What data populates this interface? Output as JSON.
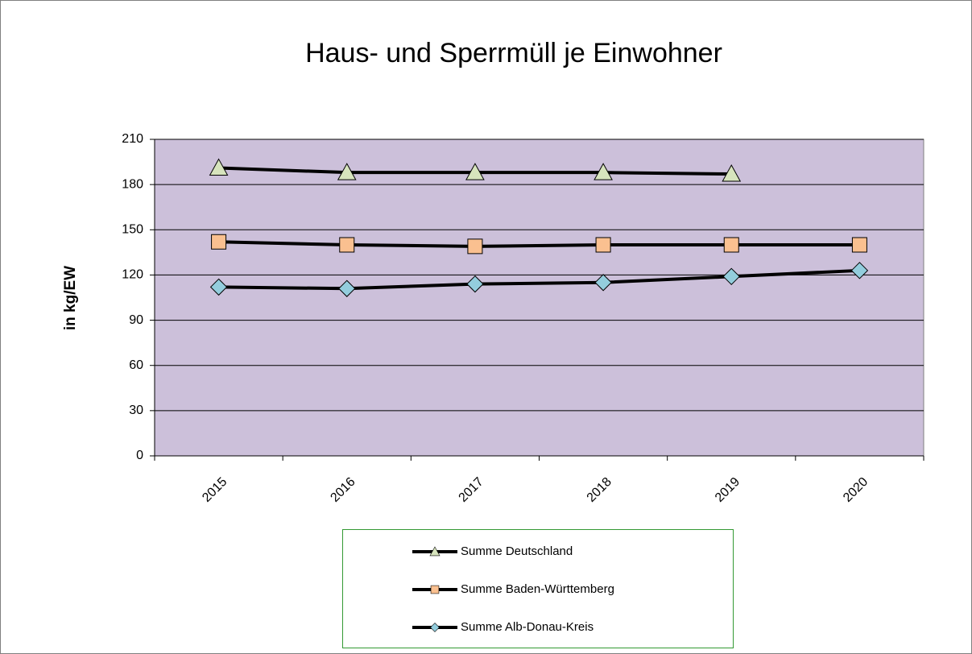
{
  "chart_data": {
    "type": "line",
    "title": "Haus- und Sperrmüll je Einwohner",
    "y_label": "in kg/EW",
    "categories": [
      "2015",
      "2016",
      "2017",
      "2018",
      "2019",
      "2020"
    ],
    "series": [
      {
        "name": "Summe Deutschland",
        "color": "#d7e4bd",
        "marker": "triangle",
        "values": [
          191,
          188,
          188,
          188,
          187,
          null
        ]
      },
      {
        "name": "Summe Baden-Württemberg",
        "color": "#fac090",
        "marker": "square",
        "values": [
          142,
          140,
          139,
          140,
          140,
          140
        ]
      },
      {
        "name": "Summe Alb-Donau-Kreis",
        "color": "#93cddd",
        "marker": "diamond",
        "values": [
          112,
          111,
          114,
          115,
          119,
          123
        ]
      }
    ],
    "ylim": [
      0,
      210
    ],
    "yticks": [
      0,
      30,
      60,
      90,
      120,
      150,
      180,
      210
    ],
    "grid": true,
    "plot_color": "#ccc0da"
  }
}
